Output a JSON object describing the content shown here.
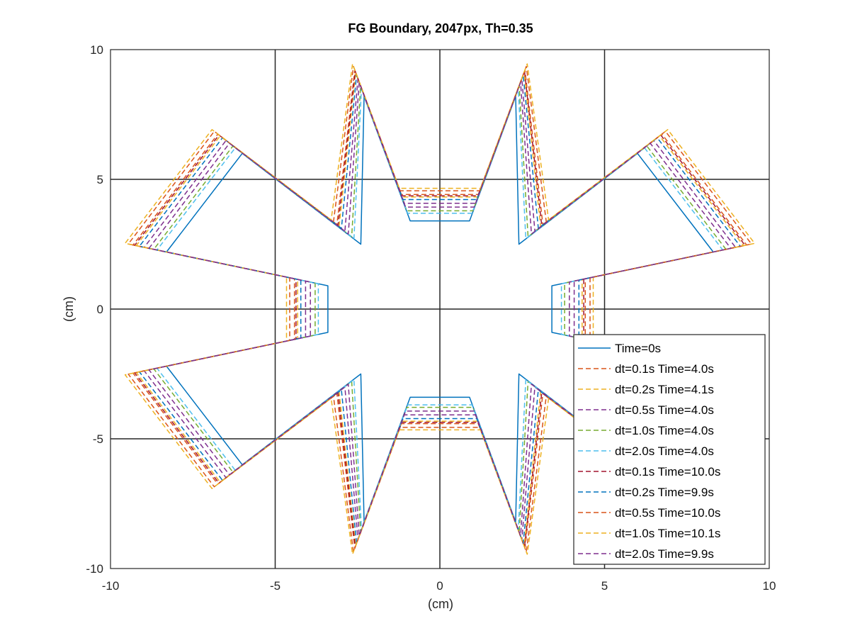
{
  "chart_data": {
    "type": "line",
    "title": "FG Boundary, 2047px, Th=0.35",
    "xlabel": "(cm)",
    "ylabel": "(cm)",
    "xlim": [
      -10,
      10
    ],
    "ylim": [
      -10,
      10
    ],
    "xticks": [
      -10,
      -5,
      0,
      5,
      10
    ],
    "yticks": [
      -10,
      -5,
      0,
      5,
      10
    ],
    "xtick_labels": [
      "-10",
      "-5",
      "0",
      "5",
      "10"
    ],
    "ytick_labels": [
      "-10",
      "-5",
      "0",
      "5",
      "10"
    ],
    "grid": true,
    "legend_position": "bottom-right",
    "shape": {
      "description_free_params": "six-lobed star outline; lobe tips approx at radius 8.5, notches approx at radius 3.5",
      "lobes": 6,
      "tip_points": [
        [
          8.3,
          2.2
        ],
        [
          8.3,
          -2.2
        ],
        [
          6.0,
          6.0
        ],
        [
          2.3,
          8.2
        ],
        [
          -2.3,
          8.2
        ],
        [
          -6.0,
          6.0
        ],
        [
          -8.3,
          2.2
        ],
        [
          -8.3,
          -2.2
        ],
        [
          -6.0,
          -6.0
        ],
        [
          -2.3,
          -8.2
        ],
        [
          2.3,
          -8.2
        ],
        [
          6.0,
          -6.0
        ]
      ],
      "inner_points": [
        [
          0.9,
          3.4
        ],
        [
          -0.9,
          3.4
        ],
        [
          2.4,
          2.5
        ],
        [
          3.4,
          0.9
        ],
        [
          -2.4,
          2.5
        ],
        [
          -3.4,
          0.9
        ],
        [
          2.4,
          -2.5
        ],
        [
          3.4,
          -0.9
        ],
        [
          -2.4,
          -2.5
        ],
        [
          -3.4,
          -0.9
        ],
        [
          0.9,
          -3.4
        ],
        [
          -0.9,
          -3.4
        ]
      ]
    },
    "series": [
      {
        "name": "Time=0s",
        "color": "#0072BD",
        "dash": "solid",
        "offset": 0.0
      },
      {
        "name": "dt=0.1s Time=4.0s",
        "color": "#D95319",
        "dash": "dashed",
        "offset": 1.05
      },
      {
        "name": "dt=0.2s Time=4.1s",
        "color": "#EDB120",
        "dash": "dashed",
        "offset": 0.95
      },
      {
        "name": "dt=0.5s Time=4.0s",
        "color": "#7E2F8E",
        "dash": "dashed",
        "offset": 0.7
      },
      {
        "name": "dt=1.0s Time=4.0s",
        "color": "#77AC30",
        "dash": "dashed",
        "offset": 0.4
      },
      {
        "name": "dt=2.0s Time=4.0s",
        "color": "#4DBEEE",
        "dash": "dashed",
        "offset": 0.3
      },
      {
        "name": "dt=0.1s Time=10.0s",
        "color": "#A2142F",
        "dash": "dashed",
        "offset": 1.0
      },
      {
        "name": "dt=0.2s Time=9.9s",
        "color": "#0072BD",
        "dash": "dashed",
        "offset": 0.85
      },
      {
        "name": "dt=0.5s Time=10.0s",
        "color": "#D95319",
        "dash": "dashed",
        "offset": 1.2
      },
      {
        "name": "dt=1.0s Time=10.1s",
        "color": "#EDB120",
        "dash": "dashed",
        "offset": 1.3
      },
      {
        "name": "dt=2.0s Time=9.9s",
        "color": "#7E2F8E",
        "dash": "dashed",
        "offset": 0.55
      }
    ]
  }
}
